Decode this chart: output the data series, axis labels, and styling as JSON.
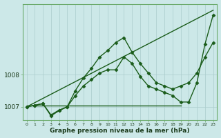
{
  "xlabel": "Graphe pression niveau de la mer (hPa)",
  "bg_color": "#cce8e8",
  "grid_color": "#aacccc",
  "line_color": "#1a5c1a",
  "xlim": [
    -0.5,
    23.5
  ],
  "ylim": [
    1006.6,
    1010.2
  ],
  "yticks": [
    1007,
    1008
  ],
  "xticks": [
    0,
    1,
    2,
    3,
    4,
    5,
    6,
    7,
    8,
    9,
    10,
    11,
    12,
    13,
    14,
    15,
    16,
    17,
    18,
    19,
    20,
    21,
    22,
    23
  ],
  "series": [
    {
      "x": [
        0,
        1,
        2,
        3,
        4,
        5,
        6,
        7,
        8,
        9,
        10,
        11,
        12,
        13,
        14,
        15,
        16,
        17,
        18,
        19,
        20,
        21,
        22,
        23
      ],
      "y": [
        1007.0,
        1007.05,
        1007.1,
        1006.75,
        1006.9,
        1007.0,
        1007.35,
        1007.65,
        1007.85,
        1008.05,
        1008.15,
        1008.15,
        1008.55,
        1008.35,
        1007.95,
        1007.65,
        1007.55,
        1007.45,
        1007.35,
        1007.15,
        1007.15,
        1007.75,
        1008.95,
        1009.85
      ],
      "marker": "D",
      "markersize": 2.5,
      "linewidth": 1.0
    },
    {
      "x": [
        0,
        1,
        2,
        3,
        4,
        5,
        6,
        7,
        8,
        9,
        10,
        11,
        12,
        13,
        14,
        15,
        16,
        17,
        18,
        19,
        20,
        21,
        22,
        23
      ],
      "y": [
        1007.0,
        1007.05,
        1007.1,
        1006.72,
        1006.88,
        1007.0,
        1007.5,
        1007.9,
        1008.2,
        1008.55,
        1008.75,
        1009.0,
        1009.15,
        1008.7,
        1008.35,
        1008.05,
        1007.75,
        1007.65,
        1007.55,
        1007.65,
        1007.75,
        1008.05,
        1008.55,
        1009.0
      ],
      "marker": "D",
      "markersize": 2.5,
      "linewidth": 1.0
    },
    {
      "x": [
        0,
        23
      ],
      "y": [
        1007.0,
        1010.0
      ],
      "marker": null,
      "markersize": 0,
      "linewidth": 1.0
    },
    {
      "x": [
        0,
        19
      ],
      "y": [
        1007.05,
        1007.05
      ],
      "marker": null,
      "markersize": 0,
      "linewidth": 1.0
    }
  ]
}
